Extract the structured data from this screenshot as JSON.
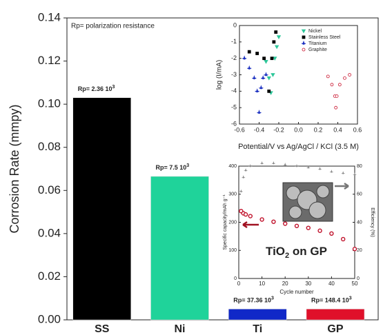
{
  "chart_data": [
    {
      "type": "bar",
      "y_label": "Corrosion Rate (mmpy)",
      "annotation": "Rp= polarization resistance",
      "categories": [
        "SS",
        "Ni",
        "Ti",
        "GP"
      ],
      "values": [
        0.103,
        0.0665,
        0.005,
        0.005
      ],
      "colors": [
        "#000000",
        "#1fd39a",
        "#1028c8",
        "#e0102a"
      ],
      "rp_labels": [
        {
          "text": "Rp= 2.36 10",
          "sup": "3"
        },
        {
          "text": "Rp= 7.5 10",
          "sup": "3"
        },
        {
          "text": "Rp= 37.36 10",
          "sup": "3"
        },
        {
          "text": "Rp= 148.4 10",
          "sup": "3"
        }
      ],
      "ylim": [
        0,
        0.14
      ],
      "yticks": [
        {
          "value": 0,
          "label": "0.00"
        },
        {
          "value": 0.02,
          "label": "0.02"
        },
        {
          "value": 0.04,
          "label": "0.04"
        },
        {
          "value": 0.06,
          "label": "0.06"
        },
        {
          "value": 0.08,
          "label": "0.08"
        },
        {
          "value": 0.1,
          "label": "0.10"
        },
        {
          "value": 0.12,
          "label": "0.12"
        },
        {
          "value": 0.14,
          "label": "0.14"
        }
      ]
    },
    {
      "type": "scatter",
      "x_label": "Potential/V vs Ag/AgCl / KCl (3.5 M)",
      "y_label": "log (I/mA)",
      "xlim": [
        -0.6,
        0.6
      ],
      "ylim": [
        -6,
        0
      ],
      "xticks": [
        -0.6,
        -0.4,
        -0.2,
        {
          "value": 0,
          "label": "0.0"
        },
        0.2,
        0.4,
        0.6
      ],
      "yticks": [
        0,
        -1,
        -2,
        -3,
        -4,
        -5,
        -6
      ],
      "series": [
        {
          "name": "Nickel",
          "color": "#2ec79a",
          "marker": "triangle",
          "x": [
            -0.33,
            -0.3,
            -0.28,
            -0.26,
            -0.24,
            -0.22,
            -0.2
          ],
          "values": [
            -2.2,
            -3.2,
            -4.1,
            -3.0,
            -2.0,
            -1.3,
            -0.7
          ]
        },
        {
          "name": "Stainless Steel",
          "color": "#000000",
          "marker": "square",
          "x": [
            -0.5,
            -0.42,
            -0.35,
            -0.3,
            -0.27,
            -0.25,
            -0.23
          ],
          "values": [
            -1.6,
            -1.7,
            -2.0,
            -4.0,
            -2.0,
            -1.0,
            -0.4
          ]
        },
        {
          "name": "Titanium",
          "color": "#1a2fc0",
          "marker": "star",
          "x": [
            -0.55,
            -0.5,
            -0.45,
            -0.42,
            -0.4,
            -0.38,
            -0.36,
            -0.33
          ],
          "values": [
            -2.0,
            -2.6,
            -3.2,
            -4.0,
            -5.3,
            -3.8,
            -3.2,
            -3.0
          ]
        },
        {
          "name": "Graphite",
          "color": "#c8102a",
          "marker": "circle",
          "x": [
            0.3,
            0.34,
            0.37,
            0.38,
            0.39,
            0.42,
            0.47,
            0.52
          ],
          "values": [
            -3.1,
            -3.6,
            -4.3,
            -5.0,
            -4.3,
            -3.6,
            -3.2,
            -3.0
          ]
        }
      ]
    },
    {
      "type": "line",
      "x_label": "Cycle number",
      "y_label": "Specific capacity/mAh g⁻¹",
      "y2_label": "Efficiency (%)",
      "annotation": {
        "text": "TiO",
        "sub": "2",
        "tail": " on GP"
      },
      "xlim": [
        0,
        50
      ],
      "ylim": [
        0,
        400
      ],
      "y2lim": [
        0,
        80
      ],
      "xticks": [
        0,
        10,
        20,
        30,
        40,
        50
      ],
      "yticks": [
        0,
        100,
        200,
        300,
        400
      ],
      "y2ticks": [
        0,
        20,
        40,
        60,
        80
      ],
      "x": [
        1,
        2,
        3,
        5,
        10,
        15,
        20,
        25,
        30,
        35,
        40,
        45,
        50
      ],
      "series": [
        {
          "color": "#c0102a",
          "values": [
            240,
            232,
            228,
            222,
            210,
            202,
            195,
            187,
            180,
            170,
            160,
            140,
            105
          ]
        },
        {
          "color": "#888888",
          "axis": "y2",
          "values": [
            62,
            72,
            77,
            80,
            82,
            82,
            81,
            80,
            79,
            78,
            76,
            75,
            74
          ]
        }
      ]
    }
  ]
}
